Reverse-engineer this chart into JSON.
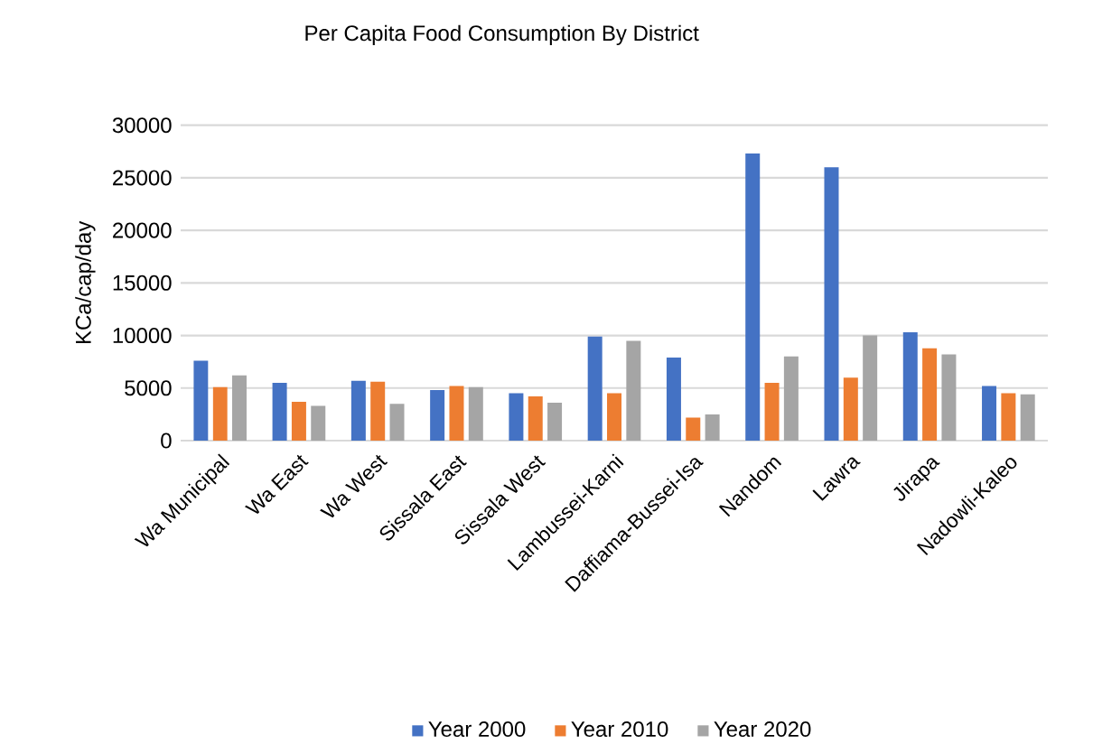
{
  "chart_data": {
    "type": "bar",
    "title": "Per Capita Food Consumption By District",
    "ylabel": "KCa/cap/day",
    "categories": [
      "Wa Municipal",
      "Wa East",
      "Wa West",
      "Sissala East",
      "Sissala West",
      "Lambussei-Karni",
      "Daffiama-Bussei-Isa",
      "Nandom",
      "Lawra",
      "Jirapa",
      "Nadowli-Kaleo"
    ],
    "series": [
      {
        "name": "Year  2000",
        "color": "#4472c4",
        "values": [
          7600,
          5500,
          5700,
          4800,
          4500,
          9900,
          7900,
          27300,
          26000,
          10300,
          5200
        ]
      },
      {
        "name": "Year  2010",
        "color": "#ed7d31",
        "values": [
          5100,
          3700,
          5600,
          5200,
          4200,
          4500,
          2200,
          5500,
          6000,
          8800,
          4500
        ]
      },
      {
        "name": "Year  2020",
        "color": "#a5a5a5",
        "values": [
          6200,
          3300,
          3500,
          5100,
          3600,
          9500,
          2500,
          8000,
          10000,
          8200,
          4400
        ]
      }
    ],
    "ylim": [
      0,
      30000
    ],
    "yticks": [
      0,
      5000,
      10000,
      15000,
      20000,
      25000,
      30000
    ],
    "grid": "y",
    "legend": "bottom"
  }
}
